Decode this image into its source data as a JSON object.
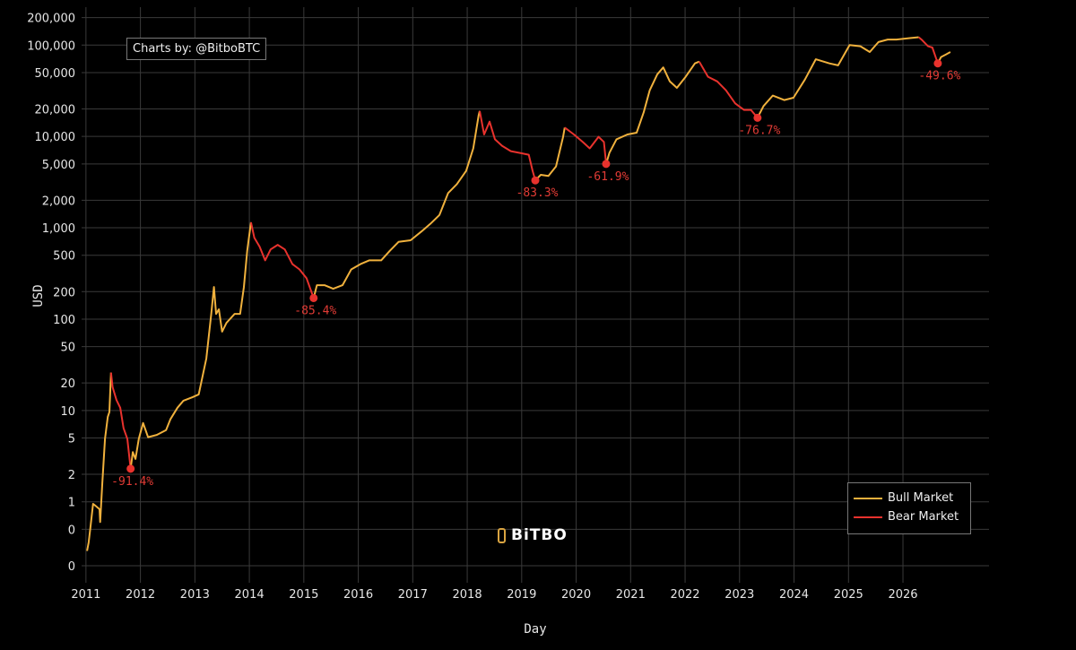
{
  "chart_data": {
    "type": "line",
    "title": "",
    "credit": "Charts by: @BitboBTC",
    "logo": "BiTBO",
    "xlabel": "Day",
    "ylabel": "USD",
    "yscale": "log",
    "xlim": [
      2010.92,
      2027.58
    ],
    "ylim": [
      0.13,
      260000
    ],
    "grid": true,
    "legend_position": "bottom-right",
    "x_ticks": [
      {
        "value": 2011,
        "label": "2011"
      },
      {
        "value": 2012,
        "label": "2012"
      },
      {
        "value": 2013,
        "label": "2013"
      },
      {
        "value": 2014,
        "label": "2014"
      },
      {
        "value": 2015,
        "label": "2015"
      },
      {
        "value": 2016,
        "label": "2016"
      },
      {
        "value": 2017,
        "label": "2017"
      },
      {
        "value": 2018,
        "label": "2018"
      },
      {
        "value": 2019,
        "label": "2019"
      },
      {
        "value": 2020,
        "label": "2020"
      },
      {
        "value": 2021,
        "label": "2021"
      },
      {
        "value": 2022,
        "label": "2022"
      },
      {
        "value": 2023,
        "label": "2023"
      },
      {
        "value": 2024,
        "label": "2024"
      },
      {
        "value": 2025,
        "label": "2025"
      },
      {
        "value": 2026,
        "label": "2026"
      }
    ],
    "y_ticks": [
      {
        "value": 200000,
        "label": "200,000"
      },
      {
        "value": 100000,
        "label": "100,000"
      },
      {
        "value": 50000,
        "label": "50,000"
      },
      {
        "value": 20000,
        "label": "20,000"
      },
      {
        "value": 10000,
        "label": "10,000"
      },
      {
        "value": 5000,
        "label": "5,000"
      },
      {
        "value": 2000,
        "label": "2,000"
      },
      {
        "value": 1000,
        "label": "1,000"
      },
      {
        "value": 500,
        "label": "500"
      },
      {
        "value": 200,
        "label": "200"
      },
      {
        "value": 100,
        "label": "100"
      },
      {
        "value": 50,
        "label": "50"
      },
      {
        "value": 20,
        "label": "20"
      },
      {
        "value": 10,
        "label": "10"
      },
      {
        "value": 5,
        "label": "5"
      },
      {
        "value": 2,
        "label": "2"
      },
      {
        "value": 1,
        "label": "1"
      },
      {
        "value": 0.5,
        "label": "0"
      },
      {
        "value": 0.2,
        "label": "0"
      }
    ],
    "legend": [
      {
        "name": "Bull Market",
        "color": "#f0b13d"
      },
      {
        "name": "Bear Market",
        "color": "#e8322d"
      }
    ],
    "segments": [
      {
        "market": "bull",
        "points": [
          [
            2011.02,
            0.29
          ],
          [
            2011.05,
            0.36
          ],
          [
            2011.08,
            0.51
          ],
          [
            2011.13,
            0.95
          ],
          [
            2011.16,
            0.92
          ],
          [
            2011.2,
            0.88
          ],
          [
            2011.25,
            0.83
          ],
          [
            2011.26,
            0.6
          ],
          [
            2011.3,
            1.6
          ],
          [
            2011.35,
            4.9
          ],
          [
            2011.4,
            8.5
          ],
          [
            2011.43,
            9.6
          ],
          [
            2011.46,
            26
          ]
        ]
      },
      {
        "market": "bear",
        "points": [
          [
            2011.46,
            26
          ],
          [
            2011.49,
            18
          ],
          [
            2011.56,
            13
          ],
          [
            2011.63,
            10.7
          ],
          [
            2011.69,
            6.4
          ],
          [
            2011.76,
            4.9
          ],
          [
            2011.82,
            2.3
          ]
        ]
      },
      {
        "market": "bull",
        "points": [
          [
            2011.82,
            2.3
          ],
          [
            2011.86,
            3.5
          ],
          [
            2011.91,
            2.95
          ],
          [
            2011.97,
            4.9
          ],
          [
            2012.05,
            7.3
          ],
          [
            2012.14,
            5.1
          ],
          [
            2012.3,
            5.4
          ],
          [
            2012.47,
            6.1
          ],
          [
            2012.55,
            8
          ],
          [
            2012.68,
            10.7
          ],
          [
            2012.79,
            12.8
          ],
          [
            2012.96,
            14
          ],
          [
            2013.07,
            15
          ],
          [
            2013.21,
            37
          ],
          [
            2013.3,
            114
          ],
          [
            2013.35,
            225
          ],
          [
            2013.39,
            114
          ],
          [
            2013.44,
            128
          ],
          [
            2013.5,
            73
          ],
          [
            2013.58,
            91
          ],
          [
            2013.73,
            114
          ],
          [
            2013.83,
            114
          ],
          [
            2013.9,
            225
          ],
          [
            2013.96,
            560
          ],
          [
            2014.03,
            1150
          ]
        ]
      },
      {
        "market": "bear",
        "points": [
          [
            2014.03,
            1150
          ],
          [
            2014.09,
            780
          ],
          [
            2014.19,
            620
          ],
          [
            2014.29,
            440
          ],
          [
            2014.39,
            580
          ],
          [
            2014.52,
            650
          ],
          [
            2014.65,
            580
          ],
          [
            2014.79,
            400
          ],
          [
            2014.92,
            350
          ],
          [
            2015.05,
            280
          ],
          [
            2015.18,
            170
          ]
        ]
      },
      {
        "market": "bull",
        "points": [
          [
            2015.18,
            170
          ],
          [
            2015.24,
            235
          ],
          [
            2015.38,
            235
          ],
          [
            2015.54,
            215
          ],
          [
            2015.71,
            235
          ],
          [
            2015.87,
            350
          ],
          [
            2016.04,
            400
          ],
          [
            2016.2,
            440
          ],
          [
            2016.42,
            440
          ],
          [
            2016.58,
            560
          ],
          [
            2016.74,
            700
          ],
          [
            2016.96,
            730
          ],
          [
            2017.16,
            910
          ],
          [
            2017.32,
            1100
          ],
          [
            2017.49,
            1380
          ],
          [
            2017.65,
            2400
          ],
          [
            2017.81,
            3000
          ],
          [
            2017.98,
            4200
          ],
          [
            2018.11,
            7400
          ],
          [
            2018.21,
            17000
          ],
          [
            2018.23,
            19000
          ]
        ]
      },
      {
        "market": "bear",
        "points": [
          [
            2018.23,
            19000
          ],
          [
            2018.31,
            10500
          ],
          [
            2018.41,
            14500
          ],
          [
            2018.51,
            9300
          ],
          [
            2018.64,
            7900
          ],
          [
            2018.8,
            6900
          ],
          [
            2018.97,
            6600
          ],
          [
            2019.13,
            6300
          ],
          [
            2019.2,
            4200
          ],
          [
            2019.25,
            3300
          ]
        ]
      },
      {
        "market": "bull",
        "points": [
          [
            2019.25,
            3300
          ],
          [
            2019.35,
            3800
          ],
          [
            2019.49,
            3700
          ],
          [
            2019.63,
            4700
          ],
          [
            2019.76,
            9900
          ],
          [
            2019.79,
            12500
          ]
        ]
      },
      {
        "market": "bear",
        "points": [
          [
            2019.79,
            12500
          ],
          [
            2019.96,
            10500
          ],
          [
            2020.12,
            8700
          ],
          [
            2020.25,
            7400
          ],
          [
            2020.41,
            9900
          ],
          [
            2020.51,
            8700
          ],
          [
            2020.55,
            5000
          ]
        ]
      },
      {
        "market": "bull",
        "points": [
          [
            2020.55,
            5000
          ],
          [
            2020.61,
            6600
          ],
          [
            2020.74,
            9300
          ],
          [
            2020.94,
            10500
          ],
          [
            2021.11,
            11000
          ],
          [
            2021.24,
            18400
          ],
          [
            2021.35,
            32000
          ],
          [
            2021.49,
            48000
          ],
          [
            2021.6,
            57000
          ],
          [
            2021.72,
            40000
          ],
          [
            2021.85,
            34000
          ],
          [
            2022.01,
            45000
          ],
          [
            2022.18,
            63000
          ],
          [
            2022.26,
            66000
          ]
        ]
      },
      {
        "market": "bear",
        "points": [
          [
            2022.26,
            66000
          ],
          [
            2022.42,
            45000
          ],
          [
            2022.59,
            40000
          ],
          [
            2022.75,
            32000
          ],
          [
            2022.92,
            23000
          ],
          [
            2023.08,
            19500
          ],
          [
            2023.21,
            19500
          ],
          [
            2023.33,
            16000
          ]
        ]
      },
      {
        "market": "bull",
        "points": [
          [
            2023.33,
            16000
          ],
          [
            2023.44,
            21500
          ],
          [
            2023.61,
            28000
          ],
          [
            2023.82,
            25000
          ],
          [
            2023.99,
            26500
          ],
          [
            2024.2,
            42000
          ],
          [
            2024.4,
            70000
          ],
          [
            2024.65,
            63000
          ],
          [
            2024.81,
            60000
          ],
          [
            2025.02,
            100000
          ],
          [
            2025.22,
            97000
          ],
          [
            2025.39,
            84000
          ],
          [
            2025.55,
            108000
          ],
          [
            2025.72,
            115000
          ],
          [
            2025.88,
            115000
          ],
          [
            2026.29,
            122000
          ]
        ]
      },
      {
        "market": "bear",
        "points": [
          [
            2026.29,
            122000
          ],
          [
            2026.34,
            115000
          ],
          [
            2026.46,
            97000
          ],
          [
            2026.54,
            94000
          ],
          [
            2026.64,
            63000
          ]
        ]
      },
      {
        "market": "bull",
        "points": [
          [
            2026.64,
            63000
          ],
          [
            2026.7,
            74000
          ],
          [
            2026.79,
            79000
          ],
          [
            2026.87,
            84000
          ]
        ]
      }
    ],
    "drawdowns": [
      {
        "x": 2011.82,
        "y": 2.3,
        "label": "-91.4%"
      },
      {
        "x": 2015.18,
        "y": 170,
        "label": "-85.4%"
      },
      {
        "x": 2019.25,
        "y": 3300,
        "label": "-83.3%"
      },
      {
        "x": 2020.55,
        "y": 5000,
        "label": "-61.9%"
      },
      {
        "x": 2023.33,
        "y": 16000,
        "label": "-76.7%"
      },
      {
        "x": 2026.64,
        "y": 63000,
        "label": "-49.6%"
      }
    ]
  }
}
